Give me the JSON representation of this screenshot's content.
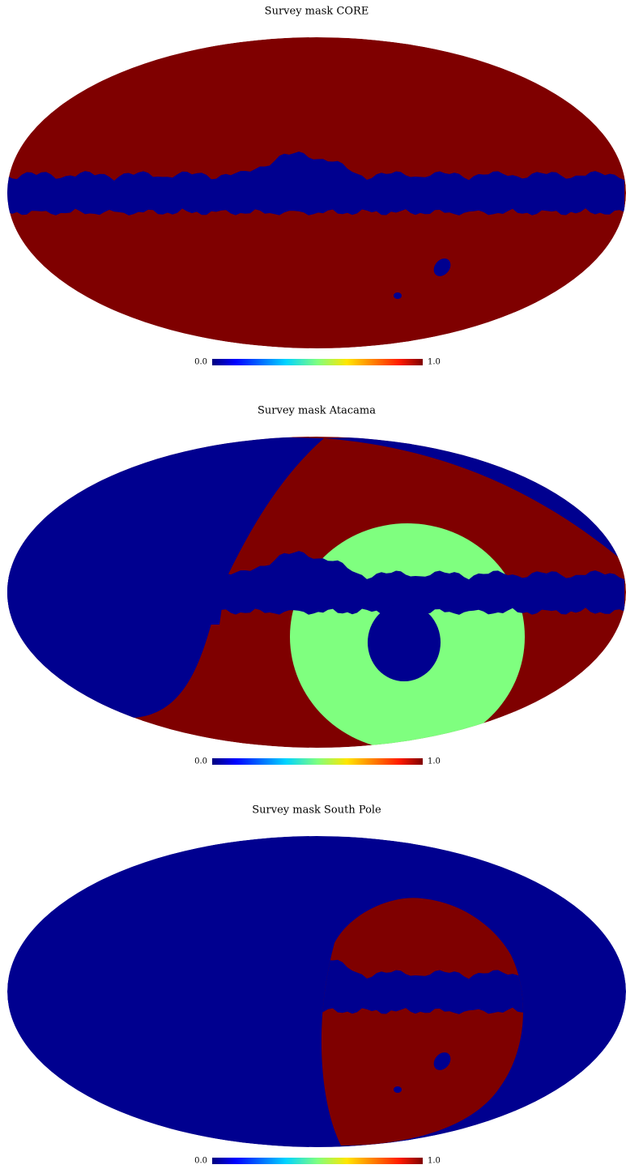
{
  "panels": [
    {
      "title": "Survey mask CORE",
      "colorbar": {
        "ticks": [
          {
            "value": 0,
            "label": "0.0"
          },
          {
            "value": 1,
            "label": "1.0"
          }
        ]
      }
    },
    {
      "title": "Survey mask Atacama",
      "colorbar": {
        "ticks": [
          {
            "value": 0,
            "label": "0.0"
          },
          {
            "value": 1,
            "label": "1.0"
          }
        ]
      }
    },
    {
      "title": "Survey mask South Pole",
      "colorbar": {
        "ticks": [
          {
            "value": 0,
            "label": "0.0"
          },
          {
            "value": 1,
            "label": "1.0"
          }
        ]
      }
    }
  ]
}
